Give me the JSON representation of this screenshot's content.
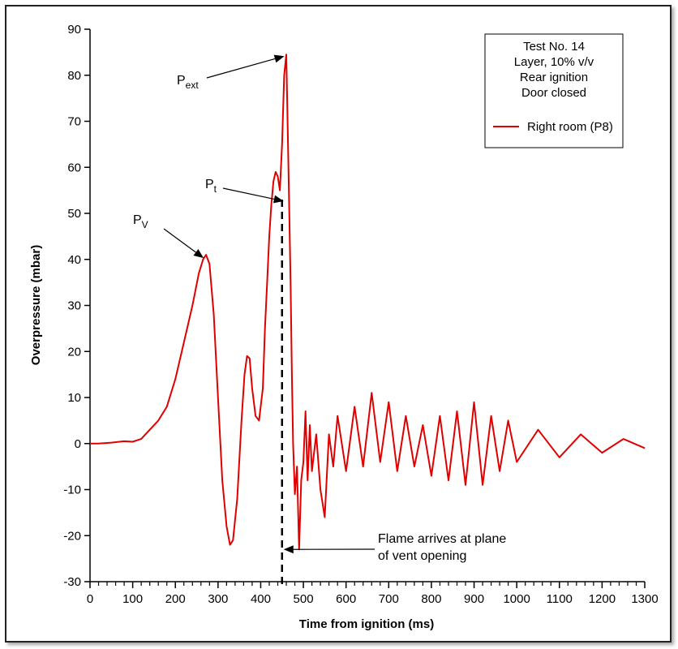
{
  "chart_data": {
    "type": "line",
    "xlabel": "Time from ignition (ms)",
    "ylabel": "Overpressure (mbar)",
    "xlim": [
      0,
      1300
    ],
    "ylim": [
      -30,
      90
    ],
    "x_ticks": [
      0,
      100,
      200,
      300,
      400,
      500,
      600,
      700,
      800,
      900,
      1000,
      1100,
      1200,
      1300
    ],
    "y_ticks": [
      -30,
      -20,
      -10,
      0,
      10,
      20,
      30,
      40,
      50,
      60,
      70,
      80,
      90
    ],
    "grid": false,
    "legend_position": "top-right",
    "legend_title_lines": [
      "Test No. 14",
      "Layer, 10% v/v",
      "Rear ignition",
      "Door closed"
    ],
    "series": [
      {
        "name": "Right room (P8)",
        "color": "#e00000",
        "x": [
          0,
          20,
          50,
          80,
          100,
          120,
          140,
          160,
          180,
          200,
          220,
          240,
          255,
          265,
          272,
          280,
          290,
          300,
          310,
          320,
          328,
          335,
          345,
          355,
          362,
          368,
          374,
          380,
          388,
          396,
          405,
          410,
          415,
          420,
          425,
          430,
          435,
          440,
          445,
          450,
          455,
          460,
          463,
          466,
          470,
          473,
          476,
          480,
          485,
          490,
          495,
          500,
          505,
          510,
          515,
          520,
          530,
          540,
          550,
          560,
          570,
          580,
          600,
          620,
          640,
          660,
          680,
          700,
          720,
          740,
          760,
          780,
          800,
          820,
          840,
          860,
          880,
          900,
          920,
          940,
          960,
          980,
          1000,
          1050,
          1100,
          1150,
          1200,
          1250,
          1300
        ],
        "y": [
          0,
          0,
          0.2,
          0.5,
          0.4,
          1,
          3,
          5,
          8,
          14,
          22,
          30,
          37,
          40,
          41,
          39,
          28,
          10,
          -8,
          -18,
          -22,
          -21,
          -12,
          5,
          15,
          19,
          18.5,
          12,
          6,
          5,
          12,
          25,
          35,
          45,
          52,
          57,
          59,
          58,
          55,
          65,
          80,
          84.5,
          70,
          55,
          35,
          15,
          0,
          -11,
          -5,
          -23,
          -8,
          -4,
          7,
          -8,
          4,
          -6,
          2,
          -10,
          -16,
          2,
          -5,
          6,
          -6,
          8,
          -5,
          11,
          -4,
          9,
          -6,
          6,
          -5,
          4,
          -7,
          6,
          -8,
          7,
          -9,
          9,
          -9,
          6,
          -6,
          5,
          -4,
          3,
          -3,
          2,
          -2,
          1,
          -1
        ]
      }
    ],
    "annotations": [
      {
        "label": "P",
        "sub": "ext",
        "x": 463,
        "y": 84.5
      },
      {
        "label": "P",
        "sub": "t",
        "x": 450,
        "y": 53
      },
      {
        "label": "P",
        "sub": "V",
        "x": 272,
        "y": 41
      },
      {
        "line1": "Flame arrives at plane",
        "line2": "of vent opening",
        "x": 450,
        "y": -23
      }
    ]
  }
}
